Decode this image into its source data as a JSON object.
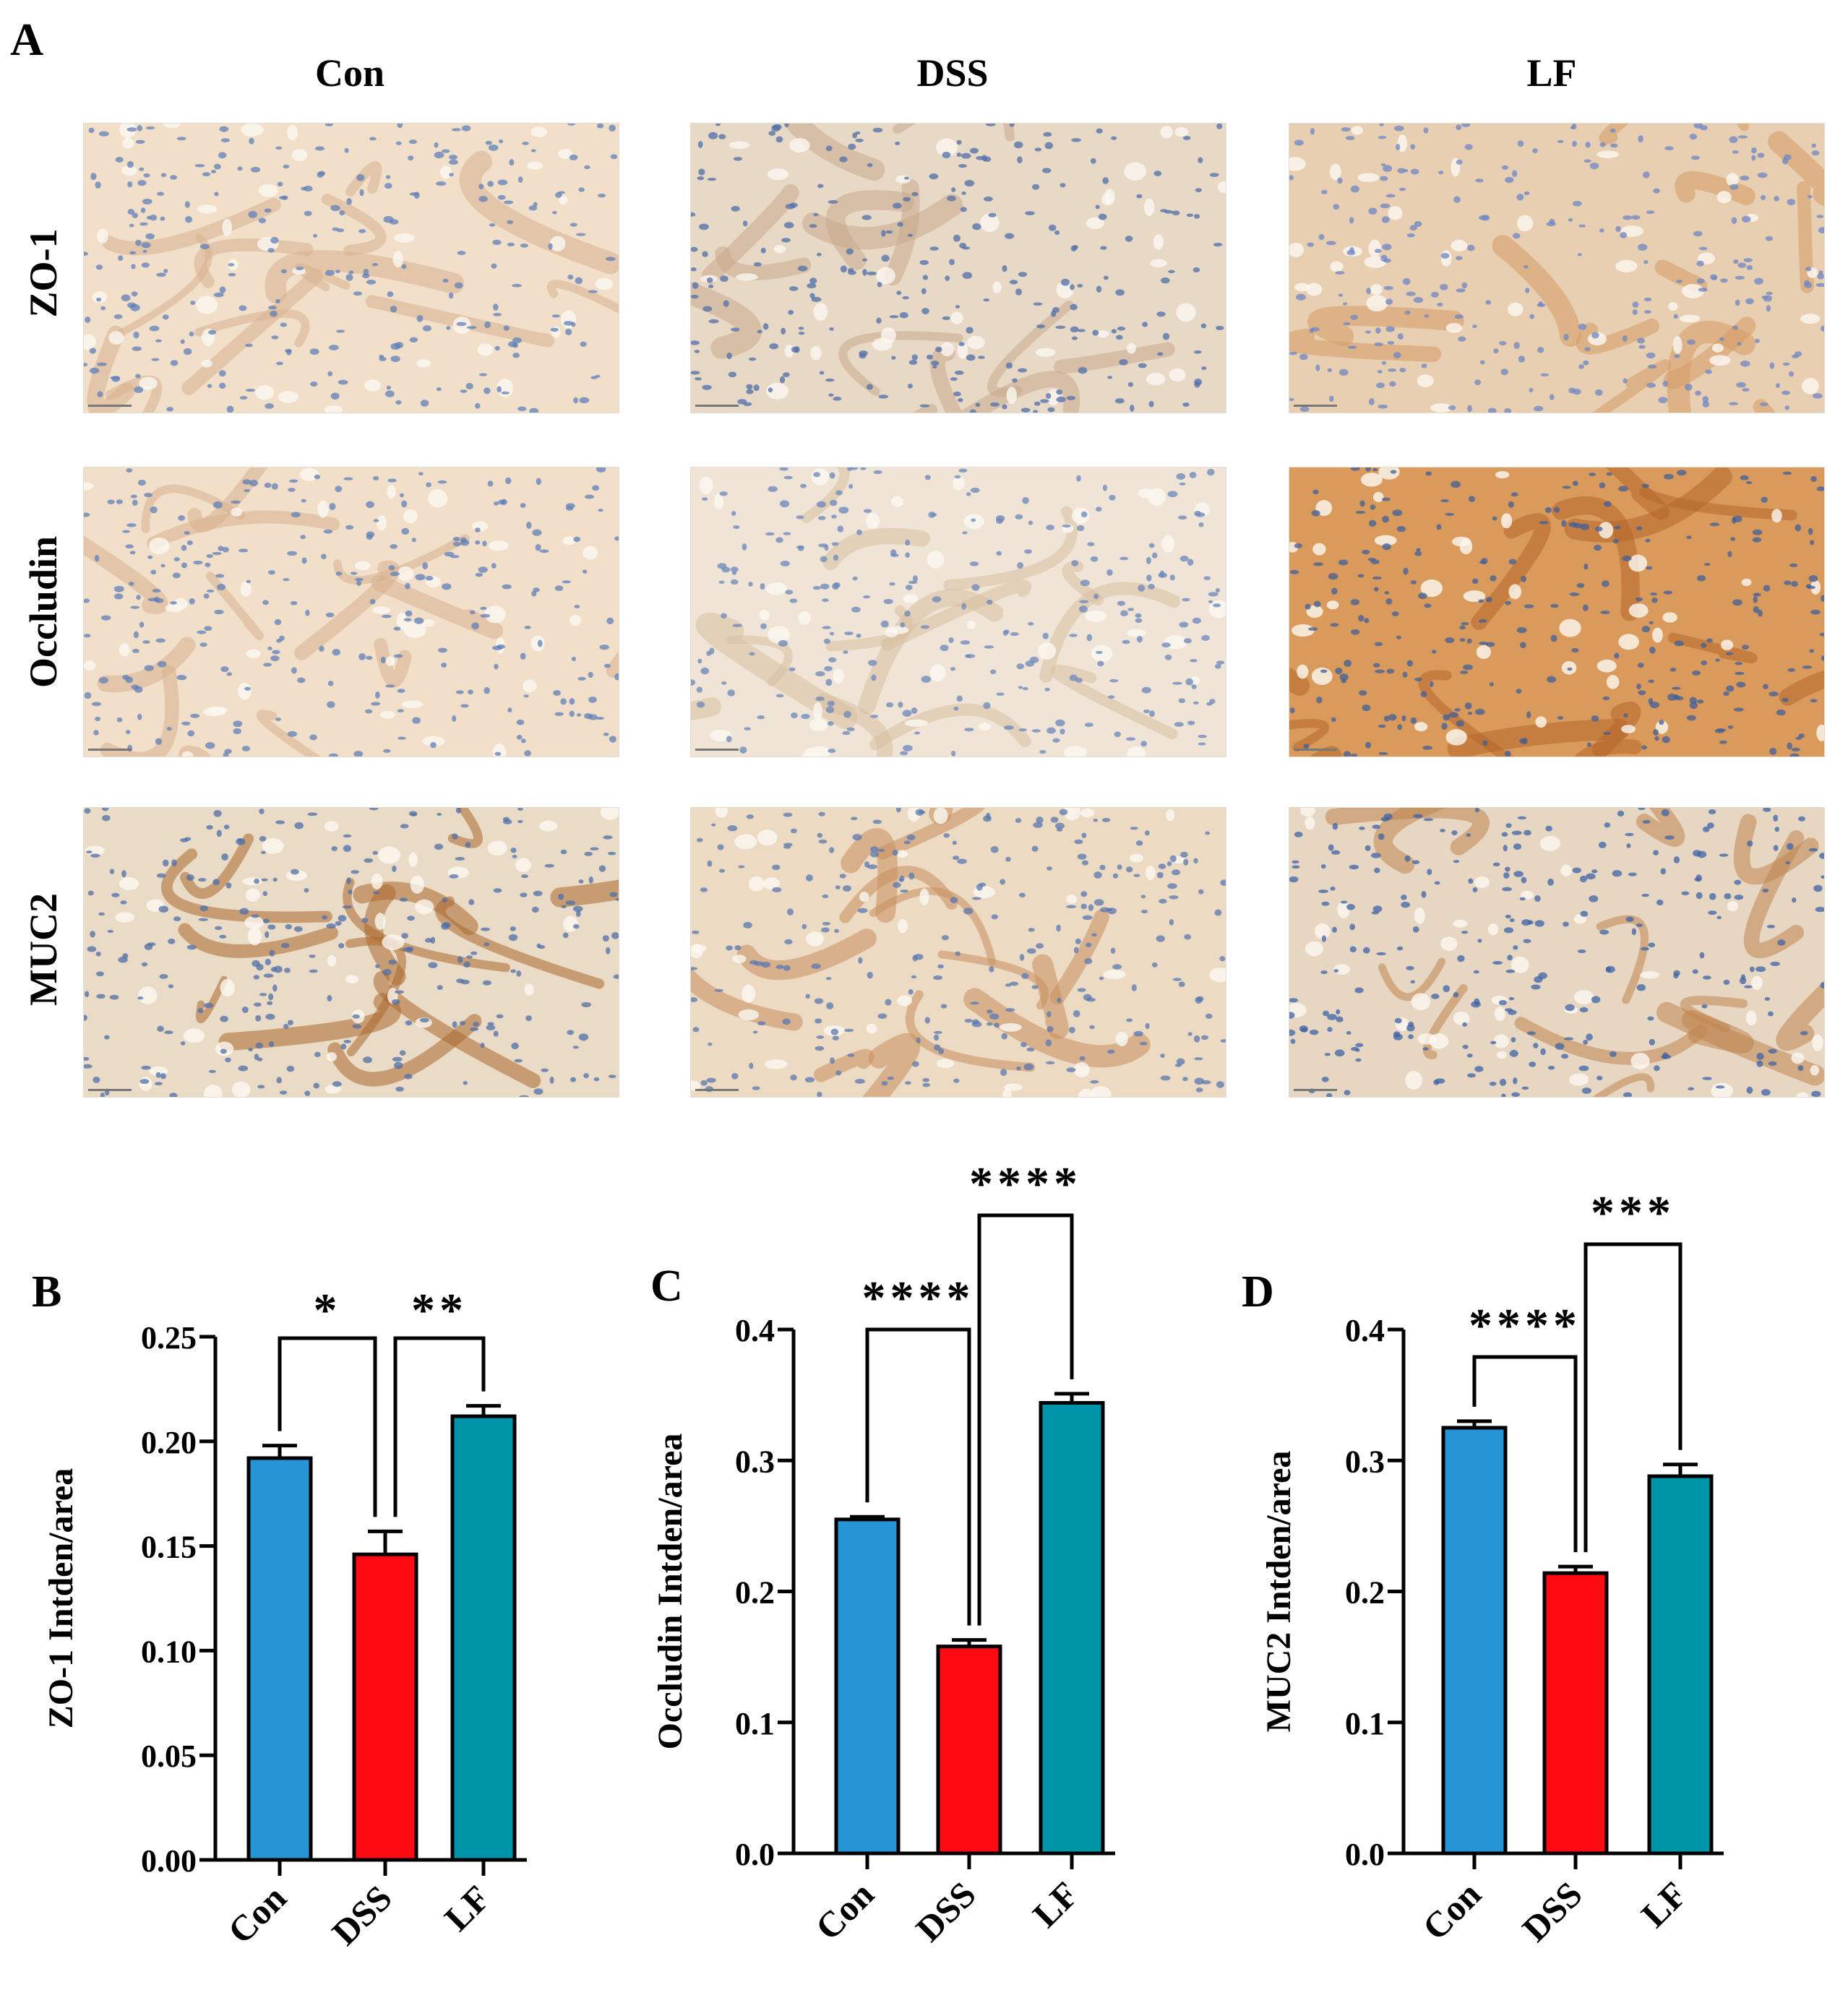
{
  "panel_a": {
    "letter": "A",
    "columns": [
      "Con",
      "DSS",
      "LF"
    ],
    "rows": [
      "ZO-1",
      "Occludin",
      "MUC2"
    ],
    "images": [
      [
        {
          "style": "light-brown"
        },
        {
          "style": "blue-dense"
        },
        {
          "style": "orange-blue"
        }
      ],
      [
        {
          "style": "light-brown"
        },
        {
          "style": "pale-blue"
        },
        {
          "style": "dark-brown"
        }
      ],
      [
        {
          "style": "brown-dots"
        },
        {
          "style": "tan-blue"
        },
        {
          "style": "blue-brown"
        }
      ]
    ],
    "colors": {
      "light-brown": [
        "#f1dfc9",
        "#d7b18e",
        "#5f7fb8"
      ],
      "blue-dense": [
        "#e8d8c6",
        "#c9a98d",
        "#4f6fa8"
      ],
      "orange-blue": [
        "#e9cfb2",
        "#d69a65",
        "#6c86c4"
      ],
      "pale-blue": [
        "#efe4d6",
        "#d8bfa3",
        "#6a87b9"
      ],
      "dark-brown": [
        "#d99a5c",
        "#b5662a",
        "#3f5f9a"
      ],
      "brown-dots": [
        "#eadbc6",
        "#a9672e",
        "#4f6fa8"
      ],
      "tan-blue": [
        "#ecdac3",
        "#c98f5e",
        "#5a78b0"
      ],
      "blue-brown": [
        "#e6d6c2",
        "#c0854e",
        "#3e63a6"
      ]
    }
  },
  "chart_data": [
    {
      "type": "bar",
      "panel": "B",
      "categories": [
        "Con",
        "DSS",
        "LF"
      ],
      "values": [
        0.192,
        0.146,
        0.212
      ],
      "errors": [
        0.006,
        0.011,
        0.005
      ],
      "ylabel": "ZO-1 Intden/area",
      "ylim": [
        0,
        0.25
      ],
      "yticks": [
        "0.00",
        "0.05",
        "0.10",
        "0.15",
        "0.20",
        "0.25"
      ],
      "comparisons": [
        {
          "from": "Con",
          "to": "DSS",
          "label": "*"
        },
        {
          "from": "DSS",
          "to": "LF",
          "label": "**"
        }
      ]
    },
    {
      "type": "bar",
      "panel": "C",
      "categories": [
        "Con",
        "DSS",
        "LF"
      ],
      "values": [
        0.255,
        0.158,
        0.344
      ],
      "errors": [
        0.002,
        0.005,
        0.007
      ],
      "ylabel": "Occludin Intden/area",
      "ylim": [
        0,
        0.4
      ],
      "yticks": [
        "0.0",
        "0.1",
        "0.2",
        "0.3",
        "0.4"
      ],
      "comparisons": [
        {
          "from": "Con",
          "to": "DSS",
          "label": "****"
        },
        {
          "from": "DSS",
          "to": "LF",
          "label": "****"
        }
      ]
    },
    {
      "type": "bar",
      "panel": "D",
      "categories": [
        "Con",
        "DSS",
        "LF"
      ],
      "values": [
        0.325,
        0.214,
        0.288
      ],
      "errors": [
        0.005,
        0.005,
        0.009
      ],
      "ylabel": "MUC2 Intden/area",
      "ylim": [
        0,
        0.4
      ],
      "yticks": [
        "0.0",
        "0.1",
        "0.2",
        "0.3",
        "0.4"
      ],
      "comparisons": [
        {
          "from": "Con",
          "to": "DSS",
          "label": "****"
        },
        {
          "from": "DSS",
          "to": "LF",
          "label": "***"
        }
      ]
    }
  ],
  "bar_colors": [
    "#2595d6",
    "#ff0a12",
    "#0094a8"
  ]
}
